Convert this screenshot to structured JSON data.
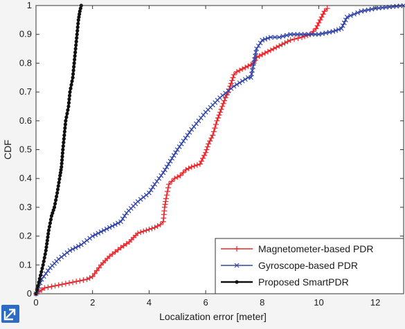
{
  "chart_data": {
    "type": "line",
    "title": "",
    "xlabel": "Localization error [meter]",
    "ylabel": "CDF",
    "xlim": [
      0,
      13
    ],
    "ylim": [
      0,
      1
    ],
    "xticks": [
      "0",
      "2",
      "4",
      "6",
      "8",
      "10",
      "12"
    ],
    "yticks": [
      "0",
      "0.1",
      "0.2",
      "0.3",
      "0.4",
      "0.5",
      "0.6",
      "0.7",
      "0.8",
      "0.9",
      "1"
    ],
    "grid": false,
    "legend_position": "bottom-right",
    "series": [
      {
        "name": "Magnetometer-based PDR",
        "color": "#e8262b",
        "marker": "plus",
        "x": [
          0,
          0.3,
          0.8,
          1.3,
          1.8,
          2.0,
          2.3,
          2.6,
          3.0,
          3.3,
          3.6,
          3.9,
          4.2,
          4.4,
          4.5,
          4.55,
          4.6,
          4.7,
          4.9,
          5.1,
          5.3,
          5.5,
          5.8,
          6.0,
          6.1,
          6.25,
          6.4,
          6.55,
          6.7,
          6.8,
          6.9,
          7.0,
          7.1,
          7.3,
          7.5,
          7.7,
          7.8,
          8.2,
          8.6,
          9.0,
          9.4,
          9.7,
          9.9,
          10.0,
          10.1,
          10.2,
          10.3
        ],
        "y": [
          0.0,
          0.02,
          0.03,
          0.04,
          0.05,
          0.06,
          0.1,
          0.13,
          0.16,
          0.18,
          0.21,
          0.22,
          0.23,
          0.24,
          0.25,
          0.3,
          0.33,
          0.38,
          0.4,
          0.41,
          0.43,
          0.44,
          0.45,
          0.49,
          0.52,
          0.55,
          0.6,
          0.64,
          0.68,
          0.7,
          0.73,
          0.76,
          0.77,
          0.78,
          0.79,
          0.8,
          0.82,
          0.84,
          0.86,
          0.88,
          0.89,
          0.9,
          0.92,
          0.94,
          0.96,
          0.98,
          0.99
        ],
        "values_read": "approximate"
      },
      {
        "name": "Gyroscope-based PDR",
        "color": "#3346a8",
        "marker": "x",
        "x": [
          0,
          0.2,
          0.5,
          0.8,
          1.2,
          1.6,
          2.0,
          2.4,
          2.8,
          3.0,
          3.2,
          3.6,
          4.0,
          4.2,
          4.5,
          5.0,
          5.5,
          6.0,
          6.5,
          7.0,
          7.5,
          7.6,
          7.7,
          7.8,
          8.0,
          8.3,
          8.6,
          9.0,
          9.5,
          10.0,
          10.5,
          10.8,
          11.0,
          11.5,
          12.0,
          12.5,
          13.0
        ],
        "y": [
          0.0,
          0.05,
          0.09,
          0.12,
          0.15,
          0.17,
          0.2,
          0.22,
          0.24,
          0.25,
          0.28,
          0.32,
          0.35,
          0.38,
          0.42,
          0.5,
          0.57,
          0.63,
          0.68,
          0.72,
          0.75,
          0.75,
          0.8,
          0.85,
          0.88,
          0.89,
          0.89,
          0.9,
          0.9,
          0.9,
          0.91,
          0.92,
          0.96,
          0.98,
          0.99,
          0.995,
          1.0
        ],
        "values_read": "approximate"
      },
      {
        "name": "Proposed SmartPDR",
        "color": "#111111",
        "marker": "dot",
        "x": [
          0,
          0.1,
          0.25,
          0.35,
          0.45,
          0.55,
          0.65,
          0.75,
          0.85,
          0.9,
          0.95,
          1.0,
          1.05,
          1.15,
          1.2,
          1.3,
          1.35,
          1.4,
          1.45,
          1.5,
          1.55,
          1.6
        ],
        "y": [
          0.0,
          0.04,
          0.1,
          0.15,
          0.22,
          0.27,
          0.3,
          0.35,
          0.41,
          0.44,
          0.5,
          0.55,
          0.6,
          0.65,
          0.7,
          0.75,
          0.8,
          0.85,
          0.9,
          0.95,
          0.98,
          1.0
        ],
        "values_read": "approximate"
      }
    ]
  },
  "ui": {
    "corner_icon": "external-link-icon"
  }
}
